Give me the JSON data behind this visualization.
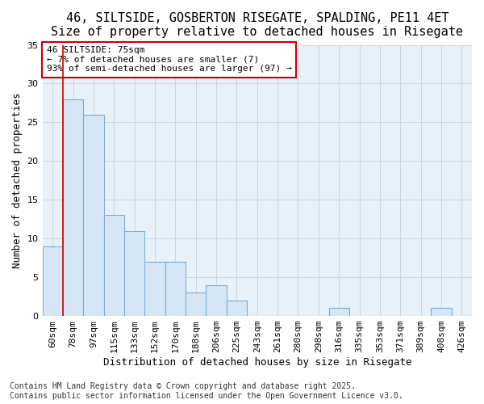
{
  "title": "46, SILTSIDE, GOSBERTON RISEGATE, SPALDING, PE11 4ET",
  "subtitle": "Size of property relative to detached houses in Risegate",
  "xlabel": "Distribution of detached houses by size in Risegate",
  "ylabel": "Number of detached properties",
  "categories": [
    "60sqm",
    "78sqm",
    "97sqm",
    "115sqm",
    "133sqm",
    "152sqm",
    "170sqm",
    "188sqm",
    "206sqm",
    "225sqm",
    "243sqm",
    "261sqm",
    "280sqm",
    "298sqm",
    "316sqm",
    "335sqm",
    "353sqm",
    "371sqm",
    "389sqm",
    "408sqm",
    "426sqm"
  ],
  "values": [
    9,
    28,
    26,
    13,
    11,
    7,
    7,
    3,
    4,
    2,
    0,
    0,
    0,
    0,
    1,
    0,
    0,
    0,
    0,
    1,
    0
  ],
  "bar_color": "#d6e6f5",
  "bar_edge_color": "#7ab0d4",
  "annotation_text": "46 SILTSIDE: 75sqm\n← 7% of detached houses are smaller (7)\n93% of semi-detached houses are larger (97) →",
  "annotation_box_color": "#ffffff",
  "annotation_box_edge_color": "#cc0000",
  "vline_color": "#cc0000",
  "vline_x_index": 1,
  "ylim": [
    0,
    35
  ],
  "yticks": [
    0,
    5,
    10,
    15,
    20,
    25,
    30,
    35
  ],
  "grid_color": "#c8d8e8",
  "background_color": "#ffffff",
  "plot_bg_color": "#e8f0f8",
  "footer_text": "Contains HM Land Registry data © Crown copyright and database right 2025.\nContains public sector information licensed under the Open Government Licence v3.0.",
  "title_fontsize": 11,
  "subtitle_fontsize": 10,
  "axis_label_fontsize": 9,
  "tick_fontsize": 8,
  "annotation_fontsize": 8,
  "footer_fontsize": 7
}
